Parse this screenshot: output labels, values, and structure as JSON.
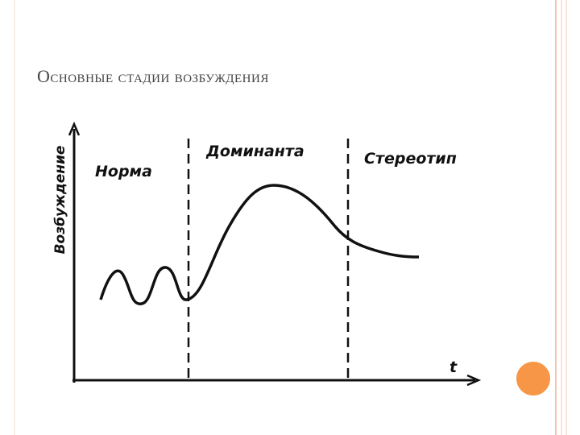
{
  "title": "Основные стадии возбуждения",
  "diagram": {
    "y_axis_label": "Возбуждение",
    "x_axis_label": "t",
    "stages": [
      "Норма",
      "Доминанта",
      "Стереотип"
    ]
  }
}
